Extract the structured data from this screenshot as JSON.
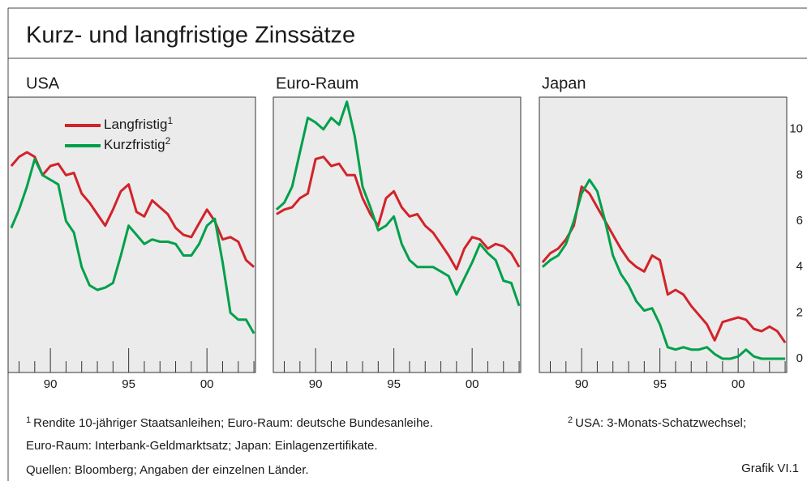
{
  "header": {
    "title": "Kurz- und langfristige Zinssätze"
  },
  "chart_data": [
    {
      "type": "line",
      "title": "USA",
      "legend": true,
      "x": [
        1987.5,
        1988,
        1988.5,
        1989,
        1989.5,
        1990,
        1990.5,
        1991,
        1991.5,
        1992,
        1992.5,
        1993,
        1993.5,
        1994,
        1994.5,
        1995,
        1995.5,
        1996,
        1996.5,
        1997,
        1997.5,
        1998,
        1998.5,
        1999,
        1999.5,
        2000,
        2000.5,
        2001,
        2001.5,
        2002,
        2002.5,
        2003
      ],
      "series": [
        {
          "name": "Langfristig",
          "note": "1",
          "color": "#d2232a",
          "values": [
            8.4,
            8.8,
            9.0,
            8.8,
            8.0,
            8.4,
            8.5,
            8.0,
            8.1,
            7.2,
            6.8,
            6.3,
            5.8,
            6.5,
            7.3,
            7.6,
            6.4,
            6.2,
            6.9,
            6.6,
            6.3,
            5.7,
            5.4,
            5.3,
            5.9,
            6.5,
            6.0,
            5.2,
            5.3,
            5.1,
            4.3,
            4.0
          ]
        },
        {
          "name": "Kurzfristig",
          "note": "2",
          "color": "#00a04b",
          "values": [
            5.7,
            6.5,
            7.5,
            8.7,
            8.0,
            7.8,
            7.6,
            6.0,
            5.5,
            4.0,
            3.2,
            3.0,
            3.1,
            3.3,
            4.5,
            5.8,
            5.4,
            5.0,
            5.2,
            5.1,
            5.1,
            5.0,
            4.5,
            4.5,
            5.0,
            5.8,
            6.1,
            4.2,
            2.0,
            1.7,
            1.7,
            1.1
          ]
        }
      ],
      "xlim": [
        1987.3,
        2003.1
      ],
      "ylim": [
        -0.6,
        11.4
      ],
      "xticks": [
        {
          "value": 1990,
          "label": "90"
        },
        {
          "value": 1995,
          "label": "95"
        },
        {
          "value": 2000,
          "label": "00"
        }
      ],
      "xminorticks": [
        1988,
        1989,
        1991,
        1992,
        1993,
        1994,
        1996,
        1997,
        1998,
        1999,
        2001,
        2002,
        2003
      ]
    },
    {
      "type": "line",
      "title": "Euro-Raum",
      "x": [
        1987.5,
        1988,
        1988.5,
        1989,
        1989.5,
        1990,
        1990.5,
        1991,
        1991.5,
        1992,
        1992.5,
        1993,
        1993.5,
        1994,
        1994.5,
        1995,
        1995.5,
        1996,
        1996.5,
        1997,
        1997.5,
        1998,
        1998.5,
        1999,
        1999.5,
        2000,
        2000.5,
        2001,
        2001.5,
        2002,
        2002.5,
        2003
      ],
      "series": [
        {
          "color": "#d2232a",
          "values": [
            6.3,
            6.5,
            6.6,
            7.0,
            7.2,
            8.7,
            8.8,
            8.4,
            8.5,
            8.0,
            8.0,
            7.0,
            6.3,
            5.8,
            7.0,
            7.3,
            6.6,
            6.2,
            6.3,
            5.8,
            5.5,
            5.0,
            4.5,
            3.9,
            4.8,
            5.3,
            5.2,
            4.8,
            5.0,
            4.9,
            4.6,
            4.0
          ]
        },
        {
          "color": "#00a04b",
          "values": [
            6.5,
            6.8,
            7.5,
            9.0,
            10.5,
            10.3,
            10.0,
            10.5,
            10.2,
            11.2,
            9.7,
            7.5,
            6.6,
            5.6,
            5.8,
            6.2,
            5.0,
            4.3,
            4.0,
            4.0,
            4.0,
            3.8,
            3.6,
            2.8,
            3.5,
            4.2,
            5.0,
            4.6,
            4.3,
            3.4,
            3.3,
            2.3
          ]
        }
      ],
      "xlim": [
        1987.3,
        2003.1
      ],
      "ylim": [
        -0.6,
        11.4
      ],
      "xticks": [
        {
          "value": 1990,
          "label": "90"
        },
        {
          "value": 1995,
          "label": "95"
        },
        {
          "value": 2000,
          "label": "00"
        }
      ],
      "xminorticks": [
        1988,
        1989,
        1991,
        1992,
        1993,
        1994,
        1996,
        1997,
        1998,
        1999,
        2001,
        2002,
        2003
      ]
    },
    {
      "type": "line",
      "title": "Japan",
      "x": [
        1987.5,
        1988,
        1988.5,
        1989,
        1989.5,
        1990,
        1990.5,
        1991,
        1991.5,
        1992,
        1992.5,
        1993,
        1993.5,
        1994,
        1994.5,
        1995,
        1995.5,
        1996,
        1996.5,
        1997,
        1997.5,
        1998,
        1998.5,
        1999,
        1999.5,
        2000,
        2000.5,
        2001,
        2001.5,
        2002,
        2002.5,
        2003
      ],
      "series": [
        {
          "color": "#d2232a",
          "values": [
            4.2,
            4.6,
            4.8,
            5.2,
            5.8,
            7.5,
            7.2,
            6.6,
            6.0,
            5.4,
            4.8,
            4.3,
            4.0,
            3.8,
            4.5,
            4.3,
            2.8,
            3.0,
            2.8,
            2.3,
            1.9,
            1.5,
            0.8,
            1.6,
            1.7,
            1.8,
            1.7,
            1.3,
            1.2,
            1.4,
            1.2,
            0.7
          ]
        },
        {
          "color": "#00a04b",
          "values": [
            4.0,
            4.3,
            4.5,
            5.0,
            6.0,
            7.2,
            7.8,
            7.3,
            6.0,
            4.5,
            3.7,
            3.2,
            2.5,
            2.1,
            2.2,
            1.5,
            0.5,
            0.4,
            0.5,
            0.4,
            0.4,
            0.5,
            0.2,
            0.0,
            0.0,
            0.1,
            0.4,
            0.1,
            0.0,
            0.0,
            0.0,
            0.0
          ]
        }
      ],
      "xlim": [
        1987.3,
        2003.1
      ],
      "ylim": [
        -0.6,
        11.4
      ],
      "xticks": [
        {
          "value": 1990,
          "label": "90"
        },
        {
          "value": 1995,
          "label": "95"
        },
        {
          "value": 2000,
          "label": "00"
        }
      ],
      "xminorticks": [
        1988,
        1989,
        1991,
        1992,
        1993,
        1994,
        1996,
        1997,
        1998,
        1999,
        2001,
        2002,
        2003
      ],
      "yticks": [
        0,
        2,
        4,
        6,
        8,
        10
      ]
    }
  ],
  "footnotes": [
    {
      "mark": "1",
      "text": "Rendite 10-jähriger Staatsanleihen; Euro-Raum: deutsche Bundesanleihe."
    },
    {
      "mark": "2",
      "text": "USA: 3-Monats-Schatzwechsel;"
    },
    {
      "text": "Euro-Raum: Interbank-Geldmarktsatz; Japan: Einlagenzertifikate."
    }
  ],
  "source": "Quellen: Bloomberg; Angaben der einzelnen Länder.",
  "figure_label": "Grafik VI.1"
}
